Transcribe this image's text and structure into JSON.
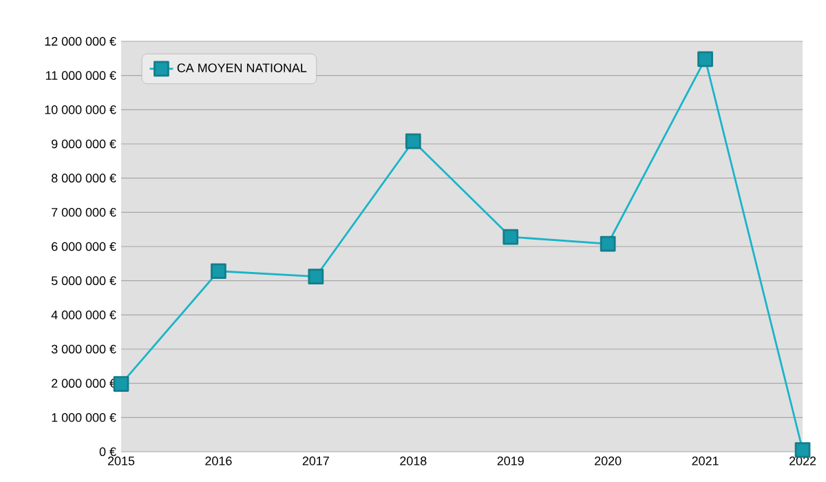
{
  "chart_data": {
    "type": "line",
    "x": [
      2015,
      2016,
      2017,
      2018,
      2019,
      2020,
      2021,
      2022
    ],
    "series": [
      {
        "name": "CA MOYEN NATIONAL",
        "color": "#1ab4c8",
        "values": [
          1980000,
          5280000,
          5120000,
          9080000,
          6280000,
          6080000,
          11480000,
          50000
        ]
      }
    ],
    "xlim": [
      2015,
      2022
    ],
    "xticks": [
      2015,
      2016,
      2017,
      2018,
      2019,
      2020,
      2021,
      2022
    ],
    "ylim": [
      0,
      12000000
    ],
    "yticks": [
      {
        "value": 0,
        "label": "0 €"
      },
      {
        "value": 1000000,
        "label": "1 000 000 €"
      },
      {
        "value": 2000000,
        "label": "2 000 000 €"
      },
      {
        "value": 3000000,
        "label": "3 000 000 €"
      },
      {
        "value": 4000000,
        "label": "4 000 000 €"
      },
      {
        "value": 5000000,
        "label": "5 000 000 €"
      },
      {
        "value": 6000000,
        "label": "6 000 000 €"
      },
      {
        "value": 7000000,
        "label": "7 000 000 €"
      },
      {
        "value": 8000000,
        "label": "8 000 000 €"
      },
      {
        "value": 9000000,
        "label": "9 000 000 €"
      },
      {
        "value": 10000000,
        "label": "10 000 000 €"
      },
      {
        "value": 11000000,
        "label": "11 000 000 €"
      },
      {
        "value": 12000000,
        "label": "12 000 000 €"
      }
    ],
    "grid": "y",
    "legend": "top left",
    "marker": "square",
    "line_style": "solid"
  }
}
